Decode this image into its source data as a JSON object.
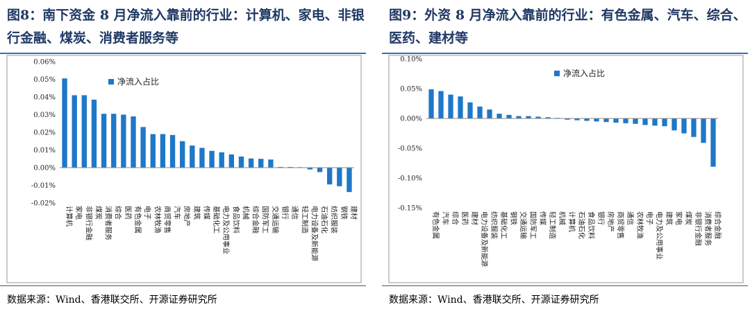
{
  "colors": {
    "bar": "#1f77c8",
    "title": "#1f3864",
    "rule": "#2e6fba"
  },
  "source_text": "数据来源：Wind、香港联交所、开源证券研究所",
  "chart_data": [
    {
      "type": "bar",
      "title": "图8：南下资金 8 月净流入靠前的行业：计算机、家电、非银行金融、煤炭、消费者服务等",
      "legend": "净流入占比",
      "ylim": [
        -0.02,
        0.06
      ],
      "yticks": [
        -0.02,
        -0.01,
        0.0,
        0.01,
        0.02,
        0.03,
        0.04,
        0.05,
        0.06
      ],
      "ytick_labels": [
        "-0.02%",
        "-0.01%",
        "0.00%",
        "0.01%",
        "0.02%",
        "0.03%",
        "0.04%",
        "0.05%",
        "0.06%"
      ],
      "categories": [
        "计算机",
        "家电",
        "非银行金融",
        "煤炭",
        "消费者服务",
        "综合",
        "医药",
        "有色金属",
        "电子",
        "农林牧渔",
        "商贸零售",
        "汽车",
        "房地产",
        "建筑",
        "传媒",
        "基础化工",
        "电力及公用事业",
        "食品饮料",
        "机械",
        "综合金融",
        "国防军工",
        "交通运输",
        "银行",
        "通信",
        "轻工制造",
        "电力设备及新能源",
        "石油石化",
        "纺织服装",
        "钢铁",
        "建材"
      ],
      "values": [
        0.0505,
        0.041,
        0.041,
        0.0385,
        0.0305,
        0.0305,
        0.03,
        0.029,
        0.023,
        0.019,
        0.019,
        0.0185,
        0.015,
        0.0125,
        0.0112,
        0.0095,
        0.0087,
        0.0075,
        0.0063,
        0.0052,
        0.005,
        0.0046,
        0.0004,
        0.0004,
        0.0003,
        -0.001,
        -0.0025,
        -0.0095,
        -0.0105,
        -0.0138
      ]
    },
    {
      "type": "bar",
      "title": "图9：外资 8 月净流入靠前的行业：有色金属、汽车、综合、医药、建材等",
      "legend": "净流入占比",
      "ylim": [
        -0.15,
        0.1
      ],
      "yticks": [
        -0.15,
        -0.1,
        -0.05,
        0.0,
        0.05,
        0.1
      ],
      "ytick_labels": [
        "-0.15%",
        "-0.10%",
        "-0.05%",
        "0.00%",
        "0.05%",
        "0.10%"
      ],
      "categories": [
        "有色金属",
        "汽车",
        "综合",
        "医药",
        "建材",
        "电力设备及新能源",
        "纺织服装",
        "基础化工",
        "钢铁",
        "交通运输",
        "国防军工",
        "传媒",
        "轻工制造",
        "机械",
        "计算机",
        "石油石化",
        "食品饮料",
        "银行",
        "房地产",
        "商贸零售",
        "通信",
        "农林牧渔",
        "电子",
        "电力及公用事业",
        "建筑",
        "家电",
        "煤炭",
        "非银行金融",
        "消费者服务",
        "综合金融"
      ],
      "values": [
        0.049,
        0.046,
        0.04,
        0.037,
        0.027,
        0.02,
        0.015,
        0.008,
        0.006,
        0.004,
        0.004,
        0.003,
        0.002,
        0.001,
        -0.002,
        -0.003,
        -0.004,
        -0.005,
        -0.006,
        -0.007,
        -0.008,
        -0.009,
        -0.011,
        -0.012,
        -0.013,
        -0.02,
        -0.025,
        -0.031,
        -0.041,
        -0.081
      ]
    }
  ]
}
